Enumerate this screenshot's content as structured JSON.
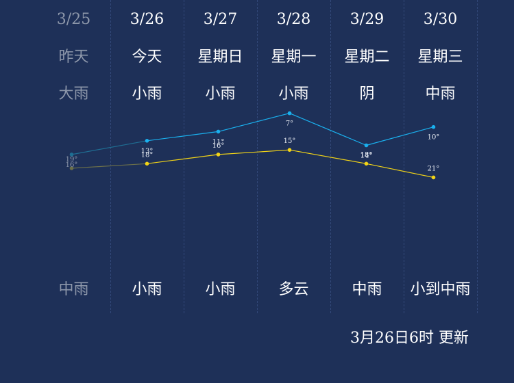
{
  "days": [
    {
      "date": "3/25",
      "weekday": "昨天",
      "weather_day": "大雨",
      "weather_night": "中雨",
      "past": true
    },
    {
      "date": "3/26",
      "weekday": "今天",
      "weather_day": "小雨",
      "weather_night": "小雨",
      "past": false
    },
    {
      "date": "3/27",
      "weekday": "星期日",
      "weather_day": "小雨",
      "weather_night": "小雨",
      "past": false
    },
    {
      "date": "3/28",
      "weekday": "星期一",
      "weather_day": "小雨",
      "weather_night": "多云",
      "past": false
    },
    {
      "date": "3/29",
      "weekday": "星期二",
      "weather_day": "阴",
      "weather_night": "中雨",
      "past": false
    },
    {
      "date": "3/30",
      "weekday": "星期三",
      "weather_day": "中雨",
      "weather_night": "小到中雨",
      "past": false
    }
  ],
  "chart_data": {
    "type": "line",
    "categories": [
      "3/25",
      "3/26",
      "3/27",
      "3/28",
      "3/29",
      "3/30"
    ],
    "series": [
      {
        "values": [
          19,
          18,
          16,
          15,
          18,
          21
        ]
      },
      {
        "values": [
          16,
          13,
          11,
          7,
          14,
          10
        ]
      }
    ],
    "unit": "°",
    "colors": {
      "high": "#f2d417",
      "low": "#1ab0ee",
      "past_high": "#6b6f4a",
      "past_low": "#1f6e93"
    }
  },
  "update_text": "3月26日6时 更新"
}
